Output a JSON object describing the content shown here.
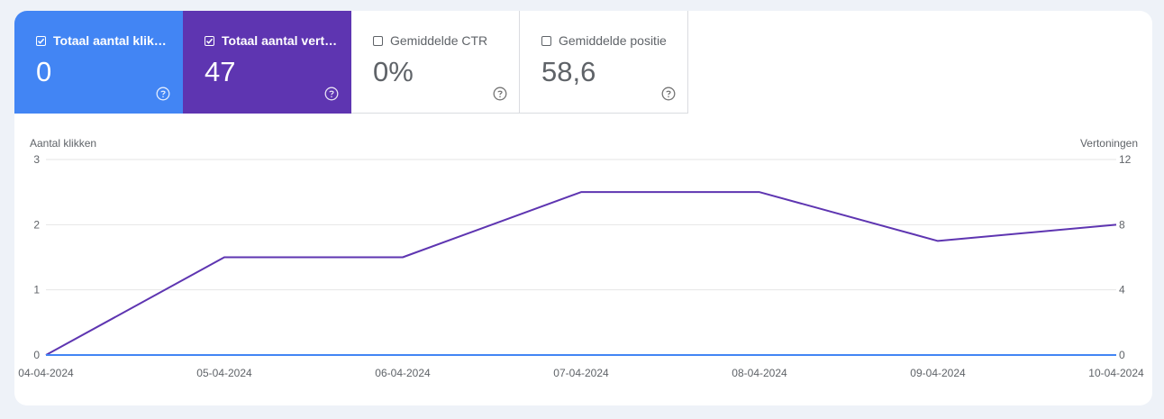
{
  "metrics": [
    {
      "label": "Totaal aantal klikk…",
      "value": "0",
      "checked": true,
      "color": "#4285f4",
      "help_icon": "question-circle-icon"
    },
    {
      "label": "Totaal aantal vert…",
      "value": "47",
      "checked": true,
      "color": "#5e35b1",
      "help_icon": "question-circle-icon"
    },
    {
      "label": "Gemiddelde CTR",
      "value": "0%",
      "checked": false,
      "help_icon": "question-circle-icon"
    },
    {
      "label": "Gemiddelde positie",
      "value": "58,6",
      "checked": false,
      "help_icon": "question-circle-icon"
    }
  ],
  "chart_data": {
    "type": "line",
    "x": [
      "04-04-2024",
      "05-04-2024",
      "06-04-2024",
      "07-04-2024",
      "08-04-2024",
      "09-04-2024",
      "10-04-2024"
    ],
    "left_axis_label": "Aantal klikken",
    "right_axis_label": "Vertoningen",
    "left_ticks": [
      0,
      1,
      2,
      3
    ],
    "right_ticks": [
      0,
      4,
      8,
      12
    ],
    "left_ylim": [
      0,
      3
    ],
    "right_ylim": [
      0,
      12
    ],
    "grid": true,
    "series": [
      {
        "name": "Totaal aantal klikken",
        "axis": "left",
        "color": "#4285f4",
        "values": [
          0,
          0,
          0,
          0,
          0,
          0,
          0
        ]
      },
      {
        "name": "Totaal aantal vertoningen",
        "axis": "right",
        "color": "#5e35b1",
        "values": [
          0,
          6,
          6,
          10,
          10,
          7,
          8
        ]
      }
    ]
  }
}
